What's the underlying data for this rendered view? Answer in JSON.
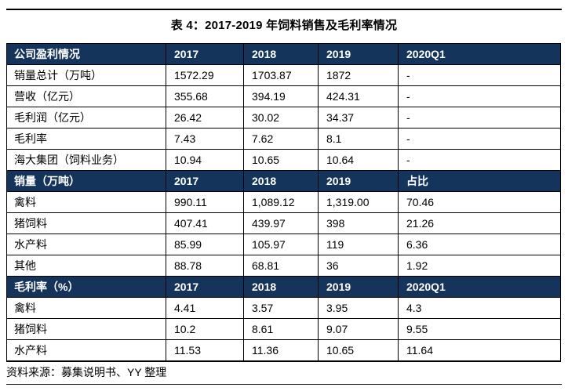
{
  "title": "表 4：2017-2019 年饲料销售及毛利率情况",
  "source_note": "资料来源：募集说明书、YY 整理",
  "colors": {
    "header_bg": "#14345c",
    "header_text": "#ffffff",
    "border": "#000000"
  },
  "table": {
    "sections": [
      {
        "header": [
          "公司盈利情况",
          "2017",
          "2018",
          "2019",
          "2020Q1"
        ],
        "rows": [
          [
            "销量总计（万吨）",
            "1572.29",
            "1703.87",
            "1872",
            "-"
          ],
          [
            "营收（亿元）",
            "355.68",
            "394.19",
            "424.31",
            "-"
          ],
          [
            "毛利润（亿元）",
            "26.42",
            "30.02",
            "34.37",
            "-"
          ],
          [
            "毛利率",
            "7.43",
            "7.62",
            "8.1",
            "-"
          ],
          [
            "海大集团（饲料业务）",
            "10.94",
            "10.65",
            "10.64",
            "-"
          ]
        ]
      },
      {
        "header": [
          "销量（万吨）",
          "2017",
          "2018",
          "2019",
          "占比"
        ],
        "rows": [
          [
            "禽料",
            "990.11",
            "1,089.12",
            "1,319.00",
            "70.46"
          ],
          [
            "猪饲料",
            "407.41",
            "439.97",
            "398",
            "21.26"
          ],
          [
            "水产料",
            "85.99",
            "105.97",
            "119",
            "6.36"
          ],
          [
            "其他",
            "88.78",
            "68.81",
            "36",
            "1.92"
          ]
        ]
      },
      {
        "header": [
          "毛利率（%）",
          "2017",
          "2018",
          "2019",
          "2020Q1"
        ],
        "rows": [
          [
            "禽料",
            "4.41",
            "3.57",
            "3.95",
            "4.3"
          ],
          [
            "猪饲料",
            "10.2",
            "8.61",
            "9.07",
            "9.55"
          ],
          [
            "水产料",
            "11.53",
            "11.36",
            "10.65",
            "11.64"
          ]
        ]
      }
    ]
  }
}
